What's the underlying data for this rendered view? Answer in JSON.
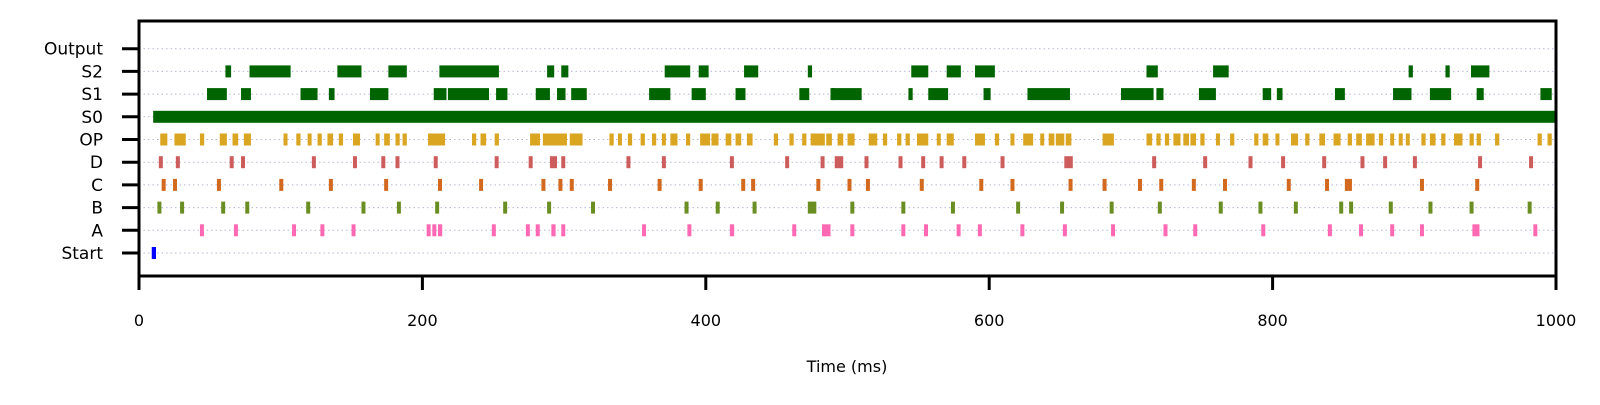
{
  "chart_data": {
    "type": "raster",
    "title": "",
    "xlabel": "Time (ms)",
    "ylabel": "",
    "xlim": [
      0,
      1000
    ],
    "xticks": [
      "0",
      "200",
      "400",
      "600",
      "800",
      "1000"
    ],
    "grid": "horizontal dotted",
    "rows": [
      {
        "name": "Start",
        "color": "#0000ff",
        "events": [
          [
            9,
            12
          ]
        ]
      },
      {
        "name": "A",
        "color": "#ff69b4",
        "events": [
          [
            43,
            45
          ],
          [
            67,
            69
          ],
          [
            108,
            110
          ],
          [
            128,
            130
          ],
          [
            150,
            152
          ],
          [
            203,
            205
          ],
          [
            207,
            209
          ],
          [
            211,
            214
          ],
          [
            249,
            251
          ],
          [
            273,
            275
          ],
          [
            280,
            282
          ],
          [
            291,
            294
          ],
          [
            298,
            300
          ],
          [
            355,
            357
          ],
          [
            387,
            389
          ],
          [
            417,
            420
          ],
          [
            461,
            463
          ],
          [
            482,
            488
          ],
          [
            502,
            504
          ],
          [
            538,
            540
          ],
          [
            554,
            556
          ],
          [
            577,
            579
          ],
          [
            592,
            594
          ],
          [
            622,
            624
          ],
          [
            652,
            654
          ],
          [
            686,
            688
          ],
          [
            723,
            725
          ],
          [
            744,
            746
          ],
          [
            792,
            794
          ],
          [
            839,
            841
          ],
          [
            861,
            863
          ],
          [
            883,
            885
          ],
          [
            904,
            906
          ],
          [
            941,
            946
          ],
          [
            984,
            986
          ]
        ]
      },
      {
        "name": "B",
        "color": "#6b8e23",
        "events": [
          [
            13,
            15
          ],
          [
            29,
            31
          ],
          [
            58,
            60
          ],
          [
            75,
            77
          ],
          [
            118,
            120
          ],
          [
            157,
            159
          ],
          [
            182,
            184
          ],
          [
            209,
            211
          ],
          [
            257,
            259
          ],
          [
            288,
            290
          ],
          [
            319,
            321
          ],
          [
            385,
            387
          ],
          [
            407,
            409
          ],
          [
            433,
            435
          ],
          [
            472,
            478
          ],
          [
            502,
            504
          ],
          [
            538,
            540
          ],
          [
            573,
            575
          ],
          [
            619,
            621
          ],
          [
            650,
            652
          ],
          [
            685,
            687
          ],
          [
            719,
            721
          ],
          [
            762,
            764
          ],
          [
            790,
            792
          ],
          [
            815,
            817
          ],
          [
            847,
            849
          ],
          [
            854,
            856
          ],
          [
            882,
            884
          ],
          [
            910,
            912
          ],
          [
            939,
            941
          ],
          [
            980,
            982
          ]
        ]
      },
      {
        "name": "C",
        "color": "#d2691e",
        "events": [
          [
            16,
            18
          ],
          [
            24,
            26
          ],
          [
            55,
            57
          ],
          [
            99,
            101
          ],
          [
            134,
            136
          ],
          [
            173,
            175
          ],
          [
            211,
            213
          ],
          [
            240,
            242
          ],
          [
            284,
            286
          ],
          [
            296,
            298
          ],
          [
            304,
            306
          ],
          [
            331,
            333
          ],
          [
            366,
            368
          ],
          [
            395,
            397
          ],
          [
            425,
            427
          ],
          [
            432,
            434
          ],
          [
            478,
            480
          ],
          [
            500,
            502
          ],
          [
            513,
            515
          ],
          [
            551,
            553
          ],
          [
            593,
            595
          ],
          [
            615,
            617
          ],
          [
            656,
            658
          ],
          [
            680,
            682
          ],
          [
            705,
            707
          ],
          [
            720,
            722
          ],
          [
            743,
            745
          ],
          [
            765,
            767
          ],
          [
            810,
            812
          ],
          [
            837,
            839
          ],
          [
            851,
            856
          ],
          [
            904,
            906
          ],
          [
            943,
            945
          ]
        ]
      },
      {
        "name": "D",
        "color": "#cd5c5c",
        "events": [
          [
            14,
            16
          ],
          [
            26,
            28
          ],
          [
            64,
            66
          ],
          [
            72,
            74
          ],
          [
            122,
            124
          ],
          [
            151,
            153
          ],
          [
            171,
            173
          ],
          [
            181,
            183
          ],
          [
            208,
            210
          ],
          [
            251,
            253
          ],
          [
            275,
            277
          ],
          [
            290,
            295
          ],
          [
            298,
            300
          ],
          [
            344,
            346
          ],
          [
            369,
            371
          ],
          [
            417,
            419
          ],
          [
            456,
            458
          ],
          [
            481,
            483
          ],
          [
            491,
            497
          ],
          [
            512,
            514
          ],
          [
            536,
            538
          ],
          [
            552,
            554
          ],
          [
            565,
            567
          ],
          [
            581,
            583
          ],
          [
            608,
            610
          ],
          [
            653,
            659
          ],
          [
            715,
            717
          ],
          [
            751,
            753
          ],
          [
            783,
            785
          ],
          [
            806,
            808
          ],
          [
            835,
            837
          ],
          [
            862,
            864
          ],
          [
            878,
            880
          ],
          [
            899,
            901
          ],
          [
            945,
            947
          ],
          [
            981,
            983
          ]
        ]
      },
      {
        "name": "OP",
        "color": "#daa520",
        "events": [
          [
            15,
            20
          ],
          [
            25,
            33
          ],
          [
            43,
            46
          ],
          [
            57,
            62
          ],
          [
            66,
            70
          ],
          [
            74,
            79
          ],
          [
            102,
            104
          ],
          [
            111,
            114
          ],
          [
            119,
            121
          ],
          [
            126,
            129
          ],
          [
            133,
            137
          ],
          [
            141,
            144
          ],
          [
            151,
            156
          ],
          [
            167,
            169
          ],
          [
            173,
            177
          ],
          [
            181,
            184
          ],
          [
            186,
            189
          ],
          [
            204,
            216
          ],
          [
            235,
            238
          ],
          [
            241,
            245
          ],
          [
            251,
            254
          ],
          [
            276,
            283
          ],
          [
            285,
            302
          ],
          [
            304,
            313
          ],
          [
            332,
            335
          ],
          [
            338,
            340
          ],
          [
            345,
            348
          ],
          [
            354,
            357
          ],
          [
            362,
            365
          ],
          [
            369,
            371
          ],
          [
            375,
            380
          ],
          [
            386,
            389
          ],
          [
            396,
            403
          ],
          [
            404,
            409
          ],
          [
            414,
            418
          ],
          [
            421,
            425
          ],
          [
            429,
            433
          ],
          [
            448,
            451
          ],
          [
            459,
            462
          ],
          [
            468,
            471
          ],
          [
            474,
            484
          ],
          [
            485,
            489
          ],
          [
            493,
            497
          ],
          [
            500,
            505
          ],
          [
            515,
            521
          ],
          [
            525,
            528
          ],
          [
            535,
            538
          ],
          [
            541,
            544
          ],
          [
            549,
            557
          ],
          [
            563,
            565
          ],
          [
            570,
            575
          ],
          [
            590,
            597
          ],
          [
            604,
            607
          ],
          [
            615,
            617
          ],
          [
            624,
            631
          ],
          [
            636,
            637
          ],
          [
            642,
            646
          ],
          [
            647,
            653
          ],
          [
            654,
            658
          ],
          [
            680,
            688
          ],
          [
            711,
            715
          ],
          [
            718,
            721
          ],
          [
            724,
            727
          ],
          [
            730,
            735
          ],
          [
            737,
            741
          ],
          [
            742,
            746
          ],
          [
            749,
            752
          ],
          [
            760,
            762
          ],
          [
            770,
            773
          ],
          [
            787,
            790
          ],
          [
            793,
            797
          ],
          [
            802,
            804
          ],
          [
            813,
            818
          ],
          [
            823,
            826
          ],
          [
            833,
            837
          ],
          [
            843,
            848
          ],
          [
            853,
            856
          ],
          [
            859,
            863
          ],
          [
            866,
            872
          ],
          [
            875,
            878
          ],
          [
            883,
            884
          ],
          [
            889,
            891
          ],
          [
            894,
            896
          ],
          [
            905,
            908
          ],
          [
            911,
            915
          ],
          [
            919,
            922
          ],
          [
            928,
            934
          ],
          [
            939,
            942
          ],
          [
            944,
            947
          ],
          [
            957,
            960
          ],
          [
            987,
            990
          ],
          [
            994,
            997
          ]
        ]
      },
      {
        "name": "S0",
        "color": "#006400",
        "events": [
          [
            10,
            1000
          ]
        ]
      },
      {
        "name": "S1",
        "color": "#006400",
        "events": [
          [
            48,
            62
          ],
          [
            72,
            79
          ],
          [
            114,
            126
          ],
          [
            134,
            138
          ],
          [
            163,
            176
          ],
          [
            208,
            217
          ],
          [
            218,
            247
          ],
          [
            252,
            260
          ],
          [
            280,
            290
          ],
          [
            295,
            301
          ],
          [
            305,
            316
          ],
          [
            360,
            375
          ],
          [
            390,
            400
          ],
          [
            421,
            428
          ],
          [
            466,
            473
          ],
          [
            488,
            488
          ],
          [
            489,
            510
          ],
          [
            543,
            546
          ],
          [
            557,
            571
          ],
          [
            596,
            601
          ],
          [
            627,
            657
          ],
          [
            693,
            716
          ],
          [
            718,
            723
          ],
          [
            748,
            753
          ],
          [
            753,
            760
          ],
          [
            793,
            799
          ],
          [
            803,
            807
          ],
          [
            844,
            851
          ],
          [
            885,
            898
          ],
          [
            911,
            926
          ],
          [
            944,
            949
          ],
          [
            989,
            997
          ]
        ]
      },
      {
        "name": "S2",
        "color": "#006400",
        "events": [
          [
            61,
            65
          ],
          [
            78,
            107
          ],
          [
            140,
            157
          ],
          [
            176,
            189
          ],
          [
            212,
            254
          ],
          [
            288,
            293
          ],
          [
            298,
            303
          ],
          [
            371,
            389
          ],
          [
            395,
            402
          ],
          [
            427,
            437
          ],
          [
            472,
            475
          ],
          [
            545,
            557
          ],
          [
            570,
            580
          ],
          [
            590,
            604
          ],
          [
            711,
            719
          ],
          [
            758,
            769
          ],
          [
            896,
            899
          ],
          [
            922,
            925
          ],
          [
            940,
            953
          ]
        ]
      },
      {
        "name": "Output",
        "color": "#006400",
        "events": []
      }
    ]
  }
}
